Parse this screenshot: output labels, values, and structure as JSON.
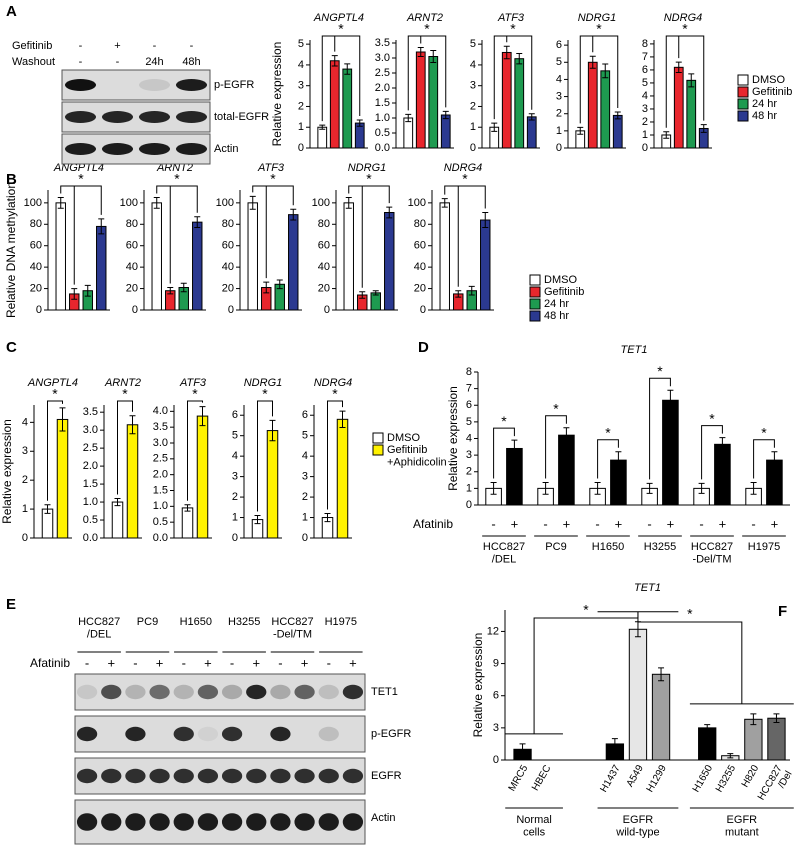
{
  "panel_labels": [
    "A",
    "B",
    "C",
    "D",
    "E",
    "F"
  ],
  "blots": [
    {
      "conditions": [
        {
          "name": "Gefitinib",
          "values": [
            "-",
            "+",
            "-",
            "-"
          ]
        },
        {
          "name": "Washout",
          "values": [
            "-",
            "-",
            "24h",
            "48h"
          ]
        }
      ],
      "bands": [
        "p-EGFR",
        "total-EGFR",
        "Actin"
      ]
    },
    {
      "groups": [
        "HCC827\n/DEL",
        "PC9",
        "H1650",
        "H3255",
        "HCC827\n-Del/TM",
        "H1975"
      ],
      "treatment": "Afatinib",
      "signs": [
        "-",
        "+"
      ],
      "bands": [
        "TET1",
        "p-EGFR",
        "EGFR",
        "Actin"
      ]
    }
  ],
  "legends": [
    {
      "entries": [
        {
          "name": "DMSO",
          "color": "#ffffff"
        },
        {
          "name": "Gefitinib",
          "color": "#e8262d"
        },
        {
          "name": "24 hr",
          "color": "#1e9a50"
        },
        {
          "name": "48 hr",
          "color": "#2b3990"
        }
      ]
    },
    {
      "entries": [
        {
          "name": "DMSO",
          "color": "#ffffff"
        },
        {
          "name": "Gefitinib",
          "color": "#e8262d"
        },
        {
          "name": "24 hr",
          "color": "#1e9a50"
        },
        {
          "name": "48 hr",
          "color": "#2b3990"
        }
      ]
    },
    {
      "entries": [
        {
          "name": "DMSO",
          "color": "#ffffff"
        },
        {
          "name": "Gefitinib\n+Aphidicolin",
          "color": "#fff200"
        }
      ]
    }
  ],
  "chart_data": [
    {
      "type": "bar",
      "title": "ANGPTL4",
      "ylabel": "Relative expression",
      "values": [
        1,
        4.2,
        3.8,
        1.2
      ],
      "errors": [
        0.1,
        0.25,
        0.25,
        0.15
      ],
      "colors": [
        "#ffffff",
        "#e8262d",
        "#1e9a50",
        "#2b3990"
      ],
      "ylim": [
        0,
        5.2
      ],
      "yticks": [
        0,
        1,
        2,
        3,
        4,
        5
      ],
      "annotation": "*"
    },
    {
      "type": "bar",
      "title": "ARNT2",
      "values": [
        1,
        3.2,
        3.05,
        1.1
      ],
      "errors": [
        0.12,
        0.15,
        0.2,
        0.12
      ],
      "colors": [
        "#ffffff",
        "#e8262d",
        "#1e9a50",
        "#2b3990"
      ],
      "ylim": [
        0,
        3.6
      ],
      "yticks": [
        {
          "value": 0,
          "label": "0.0"
        },
        0.5,
        {
          "value": 1,
          "label": "1.0"
        },
        1.5,
        {
          "value": 2,
          "label": "2.0"
        },
        2.5,
        {
          "value": 3,
          "label": "3.0"
        },
        3.5
      ],
      "annotation": "*"
    },
    {
      "type": "bar",
      "title": "ATF3",
      "values": [
        1,
        4.6,
        4.3,
        1.5
      ],
      "errors": [
        0.2,
        0.3,
        0.25,
        0.15
      ],
      "colors": [
        "#ffffff",
        "#e8262d",
        "#1e9a50",
        "#2b3990"
      ],
      "ylim": [
        0,
        5.2
      ],
      "yticks": [
        0,
        1,
        2,
        3,
        4,
        5
      ],
      "annotation": "*"
    },
    {
      "type": "bar",
      "title": "NDRG1",
      "values": [
        1,
        5,
        4.5,
        1.9
      ],
      "errors": [
        0.2,
        0.35,
        0.4,
        0.2
      ],
      "colors": [
        "#ffffff",
        "#e8262d",
        "#1e9a50",
        "#2b3990"
      ],
      "ylim": [
        0,
        6.3
      ],
      "yticks": [
        0,
        1,
        2,
        3,
        4,
        5,
        6
      ],
      "annotation": "*"
    },
    {
      "type": "bar",
      "title": "NDRG4",
      "values": [
        1,
        6.2,
        5.2,
        1.5
      ],
      "errors": [
        0.25,
        0.4,
        0.5,
        0.3
      ],
      "colors": [
        "#ffffff",
        "#e8262d",
        "#1e9a50",
        "#2b3990"
      ],
      "ylim": [
        0,
        8.3
      ],
      "yticks": [
        0,
        1,
        2,
        3,
        4,
        5,
        6,
        7,
        8
      ],
      "annotation": "*"
    },
    {
      "type": "bar",
      "title": "ANGPTL4",
      "ylabel": "Relative DNA methylation",
      "values": [
        100,
        15,
        18,
        78
      ],
      "errors": [
        5,
        5,
        5,
        7
      ],
      "colors": [
        "#ffffff",
        "#e8262d",
        "#1e9a50",
        "#2b3990"
      ],
      "ylim": [
        0,
        112
      ],
      "yticks": [
        0,
        20,
        40,
        60,
        80,
        100
      ],
      "annotation": "*"
    },
    {
      "type": "bar",
      "title": "ARNT2",
      "values": [
        100,
        18,
        21,
        82
      ],
      "errors": [
        5,
        3,
        4,
        5
      ],
      "colors": [
        "#ffffff",
        "#e8262d",
        "#1e9a50",
        "#2b3990"
      ],
      "ylim": [
        0,
        112
      ],
      "yticks": [
        0,
        20,
        40,
        60,
        80,
        100
      ],
      "annotation": "*"
    },
    {
      "type": "bar",
      "title": "ATF3",
      "values": [
        100,
        21,
        24,
        89
      ],
      "errors": [
        6,
        5,
        4,
        5
      ],
      "colors": [
        "#ffffff",
        "#e8262d",
        "#1e9a50",
        "#2b3990"
      ],
      "ylim": [
        0,
        112
      ],
      "yticks": [
        0,
        20,
        40,
        60,
        80,
        100
      ],
      "annotation": "*"
    },
    {
      "type": "bar",
      "title": "NDRG1",
      "values": [
        100,
        14,
        16,
        91
      ],
      "errors": [
        5,
        3,
        2,
        5
      ],
      "colors": [
        "#ffffff",
        "#e8262d",
        "#1e9a50",
        "#2b3990"
      ],
      "ylim": [
        0,
        112
      ],
      "yticks": [
        0,
        20,
        40,
        60,
        80,
        100
      ],
      "annotation": "*"
    },
    {
      "type": "bar",
      "title": "NDRG4",
      "values": [
        100,
        15,
        18,
        84
      ],
      "errors": [
        4,
        3,
        4,
        7
      ],
      "colors": [
        "#ffffff",
        "#e8262d",
        "#1e9a50",
        "#2b3990"
      ],
      "ylim": [
        0,
        112
      ],
      "yticks": [
        0,
        20,
        40,
        60,
        80,
        100
      ],
      "annotation": "*"
    },
    {
      "type": "bar",
      "title": "ANGPTL4",
      "ylabel": "Relative expression",
      "values": [
        1,
        4.1
      ],
      "errors": [
        0.15,
        0.4
      ],
      "colors": [
        "#ffffff",
        "#fff200"
      ],
      "ylim": [
        0,
        4.6
      ],
      "yticks": [
        0,
        1,
        2,
        3,
        4
      ],
      "annotation": "*"
    },
    {
      "type": "bar",
      "title": "ARNT2",
      "values": [
        1,
        3.15
      ],
      "errors": [
        0.1,
        0.25
      ],
      "colors": [
        "#ffffff",
        "#fff200"
      ],
      "ylim": [
        0,
        3.7
      ],
      "yticks": [
        {
          "value": 0,
          "label": "0.0"
        },
        0.5,
        {
          "value": 1,
          "label": "1.0"
        },
        1.5,
        {
          "value": 2,
          "label": "2.0"
        },
        2.5,
        {
          "value": 3,
          "label": "3.0"
        },
        3.5
      ],
      "annotation": "*"
    },
    {
      "type": "bar",
      "title": "ATF3",
      "values": [
        0.95,
        3.85
      ],
      "errors": [
        0.1,
        0.3
      ],
      "colors": [
        "#ffffff",
        "#fff200"
      ],
      "ylim": [
        0,
        4.2
      ],
      "yticks": [
        {
          "value": 0,
          "label": "0.0"
        },
        0.5,
        {
          "value": 1,
          "label": "1.0"
        },
        1.5,
        {
          "value": 2,
          "label": "2.0"
        },
        2.5,
        {
          "value": 3,
          "label": "3.0"
        },
        3.5,
        {
          "value": 4,
          "label": "4.0"
        }
      ],
      "annotation": "*"
    },
    {
      "type": "bar",
      "title": "NDRG1",
      "values": [
        0.9,
        5.25
      ],
      "errors": [
        0.2,
        0.5
      ],
      "colors": [
        "#ffffff",
        "#fff200"
      ],
      "ylim": [
        0,
        6.5
      ],
      "yticks": [
        0,
        1,
        2,
        3,
        4,
        5,
        6
      ],
      "annotation": "*"
    },
    {
      "type": "bar",
      "title": "NDRG4",
      "values": [
        1,
        5.8
      ],
      "errors": [
        0.2,
        0.4
      ],
      "colors": [
        "#ffffff",
        "#fff200"
      ],
      "ylim": [
        0,
        6.5
      ],
      "yticks": [
        0,
        1,
        2,
        3,
        4,
        5,
        6
      ],
      "annotation": "*"
    },
    {
      "type": "grouped_bar",
      "title": "TET1",
      "ylabel": "Relative expression",
      "xlabel": "Afatinib",
      "categories": [
        "HCC827\n/DEL",
        "PC9",
        "H1650",
        "H3255",
        "HCC827\n-Del/TM",
        "H1975"
      ],
      "series": [
        {
          "name": "-",
          "color": "#ffffff",
          "values": [
            1,
            1,
            1,
            1,
            1,
            1
          ],
          "errors": [
            0.35,
            0.35,
            0.35,
            0.3,
            0.3,
            0.35
          ]
        },
        {
          "name": "+",
          "color": "#000000",
          "values": [
            3.4,
            4.2,
            2.7,
            6.3,
            3.65,
            2.7
          ],
          "errors": [
            0.5,
            0.45,
            0.5,
            0.6,
            0.4,
            0.5
          ]
        }
      ],
      "ylim": [
        0,
        8
      ],
      "yticks": [
        0,
        1,
        2,
        3,
        4,
        5,
        6,
        7,
        8
      ],
      "annotation": "*"
    },
    {
      "type": "bar",
      "title": "TET1",
      "ylabel": "Relative expression",
      "categories": [
        "MRC5",
        "HBEC",
        "H1437",
        "A549",
        "H1299",
        "H1650",
        "H3255",
        "H820",
        "HCC827\n/Del"
      ],
      "values": [
        1,
        0,
        1.5,
        12.2,
        8,
        3,
        0.4,
        3.8,
        3.9
      ],
      "errors": [
        0.5,
        0,
        0.5,
        0.7,
        0.6,
        0.3,
        0.2,
        0.5,
        0.4
      ],
      "colors": [
        "#000000",
        "#000000",
        "#000000",
        "#e6e6e6",
        "#a0a0a0",
        "#000000",
        "#e6e6e6",
        "#a0a0a0",
        "#666666"
      ],
      "groups": [
        "Normal\ncells",
        "EGFR\nwild-type",
        "EGFR\nmutant"
      ],
      "ylim": [
        0,
        14
      ],
      "yticks": [
        0,
        3,
        6,
        9,
        12
      ],
      "annotations": [
        "*",
        "*"
      ]
    }
  ]
}
